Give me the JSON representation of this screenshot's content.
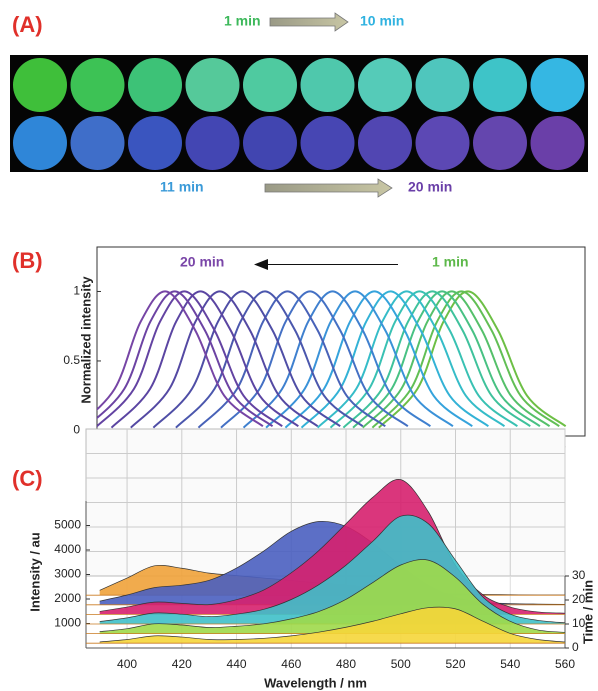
{
  "panel_a": {
    "label": "(A)",
    "top_start": "1 min",
    "top_end": "10 min",
    "bottom_start": "11 min",
    "bottom_end": "20 min",
    "wells": [
      [
        "#3fbf3a",
        "#3dc255",
        "#3dc277",
        "#55c99a",
        "#4fcaa0",
        "#4fc8ac",
        "#55cbb8",
        "#4fc6bd",
        "#3ec4c8",
        "#35b7e3"
      ],
      [
        "#2f86d8",
        "#3f6ec9",
        "#3a55bf",
        "#4346b3",
        "#4145b0",
        "#4746b3",
        "#5146b2",
        "#5c48b4",
        "#6446ae",
        "#6a3fa8"
      ]
    ]
  },
  "chart_data": [
    {
      "type": "line",
      "panel_label": "(B)",
      "ylabel": "Normalized intensity",
      "annotations": [
        {
          "text": "20 min",
          "color": "#7a46a8"
        },
        {
          "text": "1 min",
          "color": "#5db84a"
        }
      ],
      "xlim": [
        397.5,
        549
      ],
      "xticks": [
        400,
        420,
        440,
        460,
        480,
        500,
        520,
        540
      ],
      "ylim": [
        -0.04,
        1.32
      ],
      "yticks": [
        0,
        0.5,
        1
      ],
      "series": [
        {
          "color": "#6dbf45",
          "x": [
            485,
            497,
            505,
            513,
            522,
            531,
            543
          ],
          "values": [
            0.02,
            0.3,
            0.78,
            1,
            0.72,
            0.25,
            0.03
          ]
        },
        {
          "color": "#62bf55",
          "x": [
            483,
            495,
            503,
            511,
            520,
            529,
            541
          ],
          "values": [
            0.02,
            0.3,
            0.78,
            1,
            0.72,
            0.25,
            0.03
          ]
        },
        {
          "color": "#55c06a",
          "x": [
            480,
            492,
            500,
            508,
            517,
            526,
            538
          ],
          "values": [
            0.02,
            0.3,
            0.78,
            1,
            0.72,
            0.25,
            0.03
          ]
        },
        {
          "color": "#48c183",
          "x": [
            477,
            489,
            497,
            505,
            514,
            523,
            535
          ],
          "values": [
            0.02,
            0.3,
            0.78,
            1,
            0.72,
            0.25,
            0.03
          ]
        },
        {
          "color": "#3fc29c",
          "x": [
            474,
            486,
            494,
            502,
            511,
            520,
            532
          ],
          "values": [
            0.02,
            0.3,
            0.78,
            1,
            0.72,
            0.25,
            0.03
          ]
        },
        {
          "color": "#39c1b3",
          "x": [
            470,
            482,
            490,
            498,
            507,
            516,
            528
          ],
          "values": [
            0.02,
            0.3,
            0.78,
            1,
            0.72,
            0.25,
            0.03
          ]
        },
        {
          "color": "#35bcc8",
          "x": [
            466,
            478,
            486,
            494,
            503,
            512,
            524
          ],
          "values": [
            0.02,
            0.3,
            0.78,
            1,
            0.72,
            0.25,
            0.03
          ]
        },
        {
          "color": "#33b2d6",
          "x": [
            461,
            473,
            481,
            489,
            498,
            507,
            519
          ],
          "values": [
            0.02,
            0.3,
            0.78,
            1,
            0.72,
            0.25,
            0.03
          ]
        },
        {
          "color": "#35a3dc",
          "x": [
            456,
            468,
            476,
            484,
            493,
            502,
            514
          ],
          "values": [
            0.02,
            0.3,
            0.78,
            1,
            0.72,
            0.25,
            0.03
          ]
        },
        {
          "color": "#3a92d8",
          "x": [
            450,
            462,
            470,
            478,
            487,
            496,
            508
          ],
          "values": [
            0.02,
            0.3,
            0.78,
            1,
            0.72,
            0.25,
            0.03
          ]
        },
        {
          "color": "#3f80cf",
          "x": [
            443,
            455,
            463,
            471,
            480,
            489,
            501
          ],
          "values": [
            0.02,
            0.3,
            0.78,
            1,
            0.72,
            0.25,
            0.03
          ]
        },
        {
          "color": "#4470c4",
          "x": [
            436,
            448,
            456,
            464,
            473,
            482,
            494
          ],
          "values": [
            0.02,
            0.3,
            0.78,
            1,
            0.72,
            0.25,
            0.03
          ]
        },
        {
          "color": "#4862b8",
          "x": [
            429,
            441,
            449,
            457,
            466,
            475,
            487
          ],
          "values": [
            0.02,
            0.3,
            0.78,
            1,
            0.72,
            0.25,
            0.03
          ]
        },
        {
          "color": "#4b57ad",
          "x": [
            422,
            434,
            442,
            450,
            459,
            468,
            480
          ],
          "values": [
            0.02,
            0.3,
            0.78,
            1,
            0.72,
            0.25,
            0.03
          ]
        },
        {
          "color": "#4f4ea6",
          "x": [
            415,
            427,
            435,
            443,
            452,
            461,
            473
          ],
          "values": [
            0.02,
            0.3,
            0.78,
            1,
            0.72,
            0.25,
            0.03
          ]
        },
        {
          "color": "#5449a3",
          "x": [
            408,
            420,
            428,
            436,
            445,
            454,
            466
          ],
          "values": [
            0.02,
            0.3,
            0.78,
            1,
            0.72,
            0.25,
            0.03
          ]
        },
        {
          "color": "#5b45a2",
          "x": [
            402,
            414,
            422,
            430,
            439,
            448,
            460
          ],
          "values": [
            0.02,
            0.3,
            0.78,
            1,
            0.72,
            0.25,
            0.03
          ]
        },
        {
          "color": "#6343a2",
          "x": [
            397,
            409,
            417,
            425,
            434,
            443,
            455
          ],
          "values": [
            0.02,
            0.3,
            0.78,
            1,
            0.72,
            0.25,
            0.03
          ]
        },
        {
          "color": "#6c43a3",
          "x": [
            394,
            406,
            414,
            422,
            431,
            440,
            452
          ],
          "values": [
            0.02,
            0.3,
            0.78,
            1,
            0.72,
            0.25,
            0.03
          ]
        },
        {
          "color": "#7645a5",
          "x": [
            391,
            403,
            411,
            419,
            428,
            437,
            449
          ],
          "values": [
            0.02,
            0.3,
            0.78,
            1,
            0.72,
            0.25,
            0.03
          ]
        }
      ]
    },
    {
      "type": "waterfall3d",
      "panel_label": "(C)",
      "xlabel": "Wavelength / nm",
      "ylabel": "Intensity / au",
      "zlabel": "Time / min",
      "x": [
        390,
        400,
        410,
        420,
        430,
        440,
        450,
        460,
        470,
        480,
        490,
        500,
        510,
        520,
        530,
        540,
        550,
        560
      ],
      "xlim": [
        385,
        560
      ],
      "xticks": [
        400,
        420,
        440,
        460,
        480,
        500,
        520,
        540,
        560
      ],
      "ylim": [
        0,
        6000
      ],
      "yticks": [
        1000,
        2000,
        3000,
        4000,
        5000
      ],
      "zlim": [
        0,
        30
      ],
      "zticks": [
        0,
        10,
        20,
        30
      ],
      "series": [
        {
          "time": 22,
          "color": "#f0a23a",
          "values": [
            200,
            700,
            1200,
            1100,
            900,
            800,
            700,
            600,
            500,
            400,
            300,
            200,
            100,
            50,
            30,
            20,
            10,
            10
          ]
        },
        {
          "time": 18,
          "color": "#4a5fc0",
          "values": [
            150,
            400,
            700,
            800,
            1000,
            1500,
            2200,
            3000,
            3400,
            3200,
            2500,
            1600,
            800,
            300,
            100,
            50,
            30,
            20
          ]
        },
        {
          "time": 14,
          "color": "#d6206e",
          "values": [
            120,
            300,
            500,
            450,
            400,
            600,
            1000,
            1700,
            2600,
            3700,
            4800,
            5500,
            4200,
            2000,
            800,
            300,
            100,
            50
          ]
        },
        {
          "time": 10,
          "color": "#3fc0c9",
          "values": [
            100,
            250,
            450,
            400,
            300,
            400,
            600,
            1000,
            1600,
            2400,
            3400,
            4400,
            4100,
            2600,
            1100,
            400,
            150,
            50
          ]
        },
        {
          "time": 6,
          "color": "#9fd94a",
          "values": [
            80,
            200,
            400,
            350,
            250,
            300,
            400,
            600,
            900,
            1400,
            2100,
            2800,
            3000,
            2300,
            1200,
            500,
            150,
            50
          ]
        },
        {
          "time": 2,
          "color": "#f5d63a",
          "values": [
            50,
            150,
            300,
            250,
            150,
            150,
            200,
            300,
            450,
            650,
            900,
            1200,
            1450,
            1400,
            900,
            400,
            150,
            50
          ]
        }
      ]
    }
  ]
}
